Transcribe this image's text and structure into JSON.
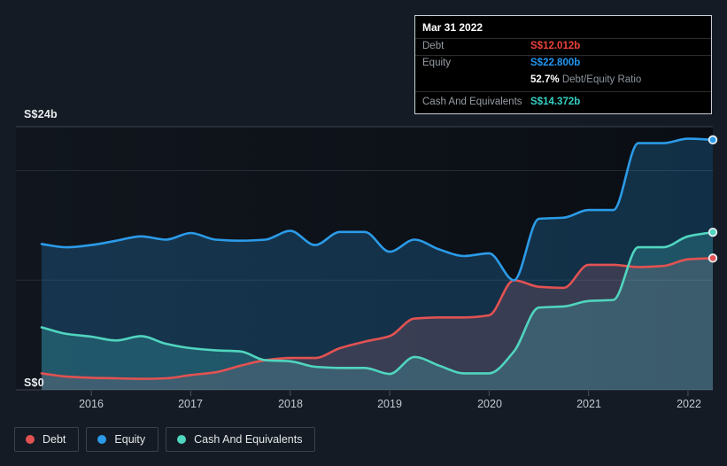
{
  "page": {
    "background": "#151b24"
  },
  "tooltip": {
    "title": "Mar 31 2022",
    "rows": [
      {
        "label": "Debt",
        "value": "S$12.012b"
      },
      {
        "label": "Equity",
        "value": "S$22.800b"
      },
      {
        "label": "Cash And Equivalents",
        "value": "S$14.372b"
      }
    ],
    "ratio_value": "52.7%",
    "ratio_label": "Debt/Equity Ratio"
  },
  "axis": {
    "y_top_label": "S$24b",
    "y_zero_label": "S$0",
    "year_labels": [
      "2016",
      "2017",
      "2018",
      "2019",
      "2020",
      "2021",
      "2022"
    ]
  },
  "legend": {
    "items": [
      {
        "key": "debt",
        "label": "Debt"
      },
      {
        "key": "equity",
        "label": "Equity"
      },
      {
        "key": "cash",
        "label": "Cash And Equivalents"
      }
    ]
  },
  "colors": {
    "debt": "#e25252",
    "equity": "#2b9be8",
    "cash": "#50d5bf",
    "debt_value": "#ef423b",
    "equity_value": "#2196f3",
    "cash_value": "#35cfc3",
    "grid_major": "#3b4452",
    "grid_minor": "#232b37",
    "tick": "#4a5361"
  },
  "chart_data": {
    "type": "area",
    "title": "Debt to Equity History (S$ billions)",
    "unit": "S$b",
    "ylabel": "S$",
    "ylim": [
      0,
      24
    ],
    "y_gridlines": [
      0,
      10,
      20,
      24
    ],
    "x_ticks": [
      2016,
      2017,
      2018,
      2019,
      2020,
      2021,
      2022
    ],
    "legend_position": "bottom",
    "x_years": [
      2015.5,
      2015.75,
      2016,
      2016.25,
      2016.5,
      2016.75,
      2017,
      2017.25,
      2017.5,
      2017.75,
      2018,
      2018.25,
      2018.5,
      2018.75,
      2019,
      2019.25,
      2019.5,
      2019.75,
      2020,
      2020.25,
      2020.5,
      2020.75,
      2021,
      2021.25,
      2021.5,
      2021.75,
      2022,
      2022.25
    ],
    "series": [
      {
        "name": "Debt",
        "key": "debt",
        "values": [
          1.5,
          1.2,
          1.1,
          1.05,
          1.0,
          1.05,
          1.35,
          1.6,
          2.2,
          2.7,
          2.9,
          2.9,
          3.8,
          4.4,
          4.9,
          6.5,
          6.6,
          6.6,
          6.8,
          10.0,
          9.4,
          9.3,
          11.4,
          11.4,
          11.2,
          11.3,
          11.9,
          12.012
        ]
      },
      {
        "name": "Equity",
        "key": "equity",
        "values": [
          13.3,
          13.0,
          13.2,
          13.6,
          14.0,
          13.7,
          14.3,
          13.7,
          13.6,
          13.7,
          14.5,
          13.2,
          14.4,
          14.4,
          12.6,
          13.7,
          12.8,
          12.2,
          12.45,
          10.0,
          15.6,
          15.7,
          16.4,
          16.4,
          22.5,
          22.5,
          22.9,
          22.8
        ]
      },
      {
        "name": "Cash And Equivalents",
        "key": "cash",
        "values": [
          5.7,
          5.1,
          4.85,
          4.5,
          4.9,
          4.2,
          3.8,
          3.6,
          3.5,
          2.7,
          2.6,
          2.1,
          2.0,
          2.0,
          1.45,
          3.0,
          2.2,
          1.5,
          1.5,
          3.5,
          7.5,
          7.6,
          8.1,
          8.2,
          13.0,
          13.0,
          14.0,
          14.372
        ]
      }
    ]
  }
}
